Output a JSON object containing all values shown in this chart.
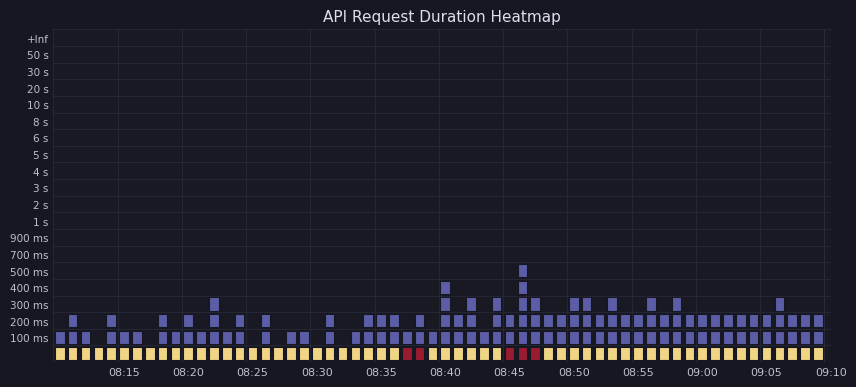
{
  "title": "API Request Duration Heatmap",
  "background_color": "#161721",
  "plot_bg_color": "#181922",
  "grid_color": "#2a2d40",
  "text_color": "#c0c0cc",
  "title_color": "#ddddee",
  "y_labels": [
    "+Inf",
    "50 s",
    "30 s",
    "20 s",
    "10 s",
    "8 s",
    "6 s",
    "5 s",
    "4 s",
    "3 s",
    "2 s",
    "1 s",
    "900 ms",
    "700 ms",
    "500 ms",
    "400 ms",
    "300 ms",
    "200 ms",
    "100 ms"
  ],
  "x_tick_labels": [
    "08:15",
    "08:20",
    "08:25",
    "08:30",
    "08:35",
    "08:40",
    "08:45",
    "08:50",
    "08:55",
    "09:00",
    "09:05",
    "09:10"
  ],
  "bar_color_purple": "#5b5ea6",
  "bar_color_yellow": "#f0d585",
  "bar_color_red": "#9b1c31",
  "n_time_bins": 60,
  "x_tick_positions": [
    5,
    10,
    15,
    20,
    25,
    30,
    35,
    40,
    45,
    50,
    55,
    60
  ],
  "heights": [
    1,
    2,
    1,
    0,
    2,
    1,
    1,
    0,
    2,
    1,
    2,
    1,
    3,
    1,
    2,
    0,
    2,
    0,
    1,
    1,
    0,
    2,
    0,
    1,
    2,
    2,
    2,
    1,
    2,
    1,
    4,
    2,
    3,
    1,
    3,
    2,
    5,
    3,
    2,
    2,
    3,
    3,
    2,
    3,
    2,
    2,
    3,
    2,
    3,
    2,
    2,
    2,
    2,
    2,
    2,
    2,
    3,
    2,
    2,
    2
  ],
  "red_bins": [
    27,
    28,
    35,
    36,
    37
  ],
  "no_yellow_bins": []
}
